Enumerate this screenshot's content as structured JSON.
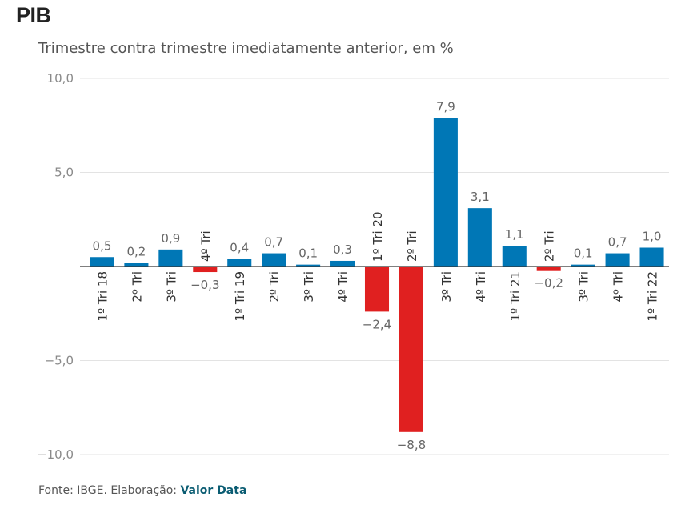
{
  "title": "PIB",
  "subtitle": "Trimestre contra trimestre imediatamente anterior, em %",
  "footer": {
    "prefix": "Fonte: IBGE. Elaboração: ",
    "link": "Valor Data"
  },
  "colors": {
    "positive": "#0077b6",
    "negative": "#e02020",
    "grid": "#e3e3e3",
    "zero": "#333333"
  },
  "chart_data": {
    "type": "bar",
    "title": "PIB",
    "subtitle": "Trimestre contra trimestre imediatamente anterior, em %",
    "categories": [
      "1º Tri 18",
      "2º Tri",
      "3º Tri",
      "4º Tri",
      "1º Tri 19",
      "2º Tri",
      "3º Tri",
      "4º Tri",
      "1º Tri 20",
      "2º Tri",
      "3º Tri",
      "4º Tri",
      "1º Tri 21",
      "2º Tri",
      "3º Tri",
      "4º Tri",
      "1º Tri 22"
    ],
    "values": [
      0.5,
      0.2,
      0.9,
      -0.3,
      0.4,
      0.7,
      0.1,
      0.3,
      -2.4,
      -8.8,
      7.9,
      3.1,
      1.1,
      -0.2,
      0.1,
      0.7,
      1.0
    ],
    "value_labels": [
      "0,5",
      "0,2",
      "0,9",
      "−0,3",
      "0,4",
      "0,7",
      "0,1",
      "0,3",
      "−2,4",
      "−8,8",
      "7,9",
      "3,1",
      "1,1",
      "−0,2",
      "0,1",
      "0,7",
      "1,0"
    ],
    "yticks": [
      10,
      5,
      -5,
      -10
    ],
    "ytick_labels": [
      "10,0",
      "5,0",
      "−5,0",
      "−10,0"
    ],
    "ylim": [
      -10,
      10
    ],
    "grid": true,
    "xlabel": "",
    "ylabel": ""
  }
}
